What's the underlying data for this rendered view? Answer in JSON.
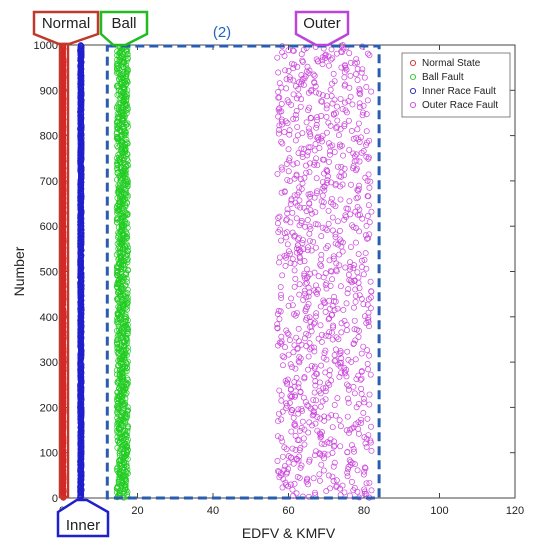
{
  "chart_data": {
    "type": "scatter",
    "xlabel": "EDFV & KMFV",
    "ylabel": "Number",
    "xlim": [
      0,
      120
    ],
    "ylim": [
      0,
      1000
    ],
    "xticks": [
      0,
      20,
      40,
      60,
      80,
      100,
      120
    ],
    "yticks": [
      0,
      100,
      200,
      300,
      400,
      500,
      600,
      700,
      800,
      900,
      1000
    ],
    "xtick_labels": [
      "0",
      "20",
      "40",
      "60",
      "80",
      "100",
      "120"
    ],
    "ytick_labels": [
      "0",
      "100",
      "200",
      "300",
      "400",
      "500",
      "600",
      "700",
      "800",
      "900",
      "1000"
    ],
    "grid": false,
    "legend_position": "top-right",
    "marker": "circle-open",
    "series": [
      {
        "name": "Normal State",
        "color": "#d62728",
        "x_range": [
          0.1,
          0.4
        ],
        "count": 1000
      },
      {
        "name": "Ball Fault",
        "color": "#22cc22",
        "x_range": [
          14.5,
          17.5
        ],
        "count": 1000
      },
      {
        "name": "Inner Race Fault",
        "color": "#1f1fcc",
        "x_range": [
          4.8,
          5.2
        ],
        "count": 1000
      },
      {
        "name": "Outer Race Fault",
        "color": "#cc44dd",
        "x_range": [
          57,
          82
        ],
        "count": 1000
      }
    ],
    "annotations": [
      {
        "text": "Normal",
        "color": "#c0392b",
        "at_x": 0
      },
      {
        "text": "Ball",
        "color": "#22bb22",
        "at_x": 16
      },
      {
        "text": "Outer",
        "color": "#bb44dd",
        "at_x": 70
      },
      {
        "text": "Inner",
        "color": "#1f1fcc",
        "at_x": 5
      },
      {
        "text": "(2)",
        "color": "#2266bb"
      }
    ],
    "region_box": {
      "x_range": [
        12,
        84
      ],
      "y_range": [
        0,
        1000
      ],
      "color": "#2a5db0",
      "style": "dashed"
    }
  }
}
